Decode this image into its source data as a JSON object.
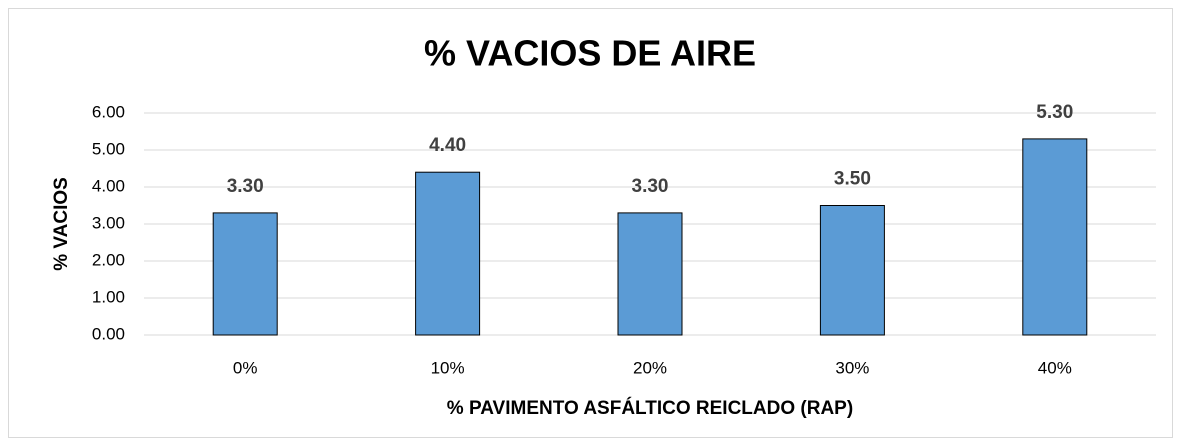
{
  "chart_data": {
    "type": "bar",
    "title": "% VACIOS DE AIRE",
    "x_label": "% PAVIMENTO ASFÁLTICO REICLADO (RAP)",
    "y_label": "% VACIOS",
    "categories": [
      "0%",
      "10%",
      "20%",
      "30%",
      "40%"
    ],
    "values": [
      3.3,
      4.4,
      3.3,
      3.5,
      5.3
    ],
    "value_labels": [
      "3.30",
      "4.40",
      "3.30",
      "3.50",
      "5.30"
    ],
    "color": "#5b9bd5",
    "ylim": [
      0,
      6
    ],
    "yticks": [
      {
        "value": 0,
        "label": "0.00"
      },
      {
        "value": 1,
        "label": "1.00"
      },
      {
        "value": 2,
        "label": "2.00"
      },
      {
        "value": 3,
        "label": "3.00"
      },
      {
        "value": 4,
        "label": "4.00"
      },
      {
        "value": 5,
        "label": "5.00"
      },
      {
        "value": 6,
        "label": "6.00"
      }
    ],
    "grid": true
  }
}
